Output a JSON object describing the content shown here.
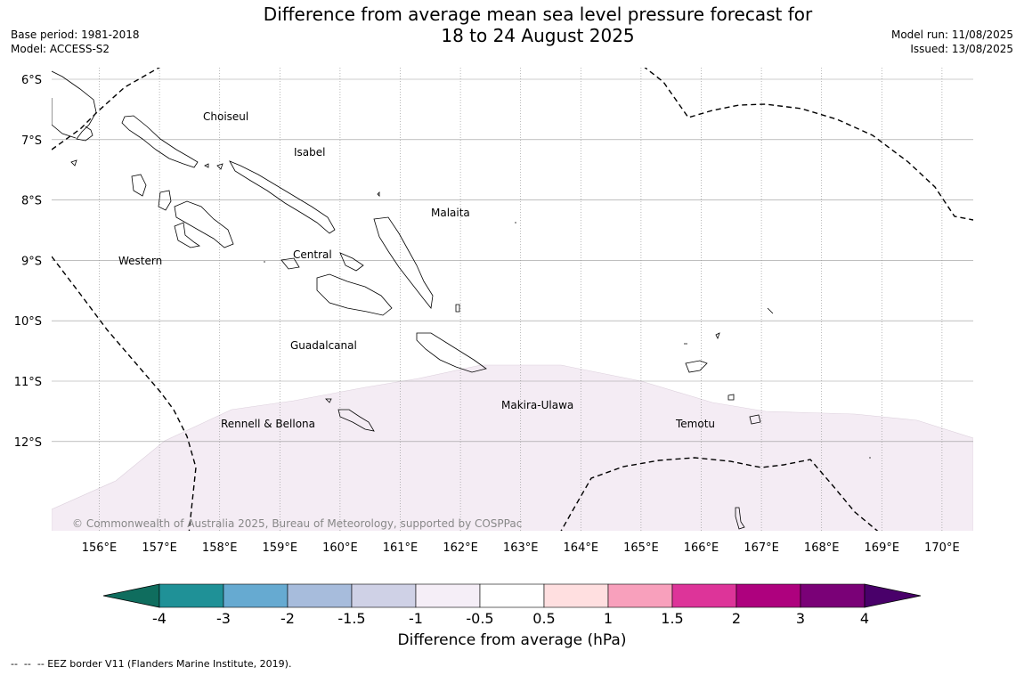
{
  "title": "Difference from average mean sea level pressure forecast for\n18 to 24 August 2025",
  "base_period": "Base period: 1981-2018",
  "model": "Model: ACCESS-S2",
  "model_run": "Model run: 11/08/2025",
  "issued": "Issued: 13/08/2025",
  "copyright": "© Commonwealth of Australia 2025, Bureau of Meteorology, supported by COSPPac",
  "footnote": "--  --  -- EEZ border V11 (Flanders Marine Institute, 2019).",
  "lat_labels": [
    "6°S",
    "7°S",
    "8°S",
    "9°S",
    "10°S",
    "11°S",
    "12°S"
  ],
  "lon_labels": [
    "156°E",
    "157°E",
    "158°E",
    "159°E",
    "160°E",
    "161°E",
    "162°E",
    "163°E",
    "164°E",
    "165°E",
    "166°E",
    "167°E",
    "168°E",
    "169°E",
    "170°E"
  ],
  "province_labels": [
    "Choiseul",
    "Isabel",
    "Malaita",
    "Western",
    "Central",
    "Guadalcanal",
    "Makira-Ulawa",
    "Rennell & Bellona",
    "Temotu"
  ],
  "colorbar": {
    "label": "Difference from average (hPa)",
    "ticks": [
      "-4",
      "-3",
      "-2",
      "-1.5",
      "-1",
      "-0.5",
      "0.5",
      "1",
      "1.5",
      "2",
      "3",
      "4"
    ],
    "colors": [
      "#0f6d5e",
      "#1f9197",
      "#66aad1",
      "#a7bcdc",
      "#cfd1e6",
      "#f5eef7",
      "#ffffff",
      "#ffdfe0",
      "#f8a0bc",
      "#dd3499",
      "#ae017e",
      "#7a0177",
      "#49006a"
    ]
  },
  "map_colors": {
    "anomaly_fill": "#f4ecf4",
    "grid": "#999999",
    "coast": "#000000",
    "eez": "#000000"
  }
}
